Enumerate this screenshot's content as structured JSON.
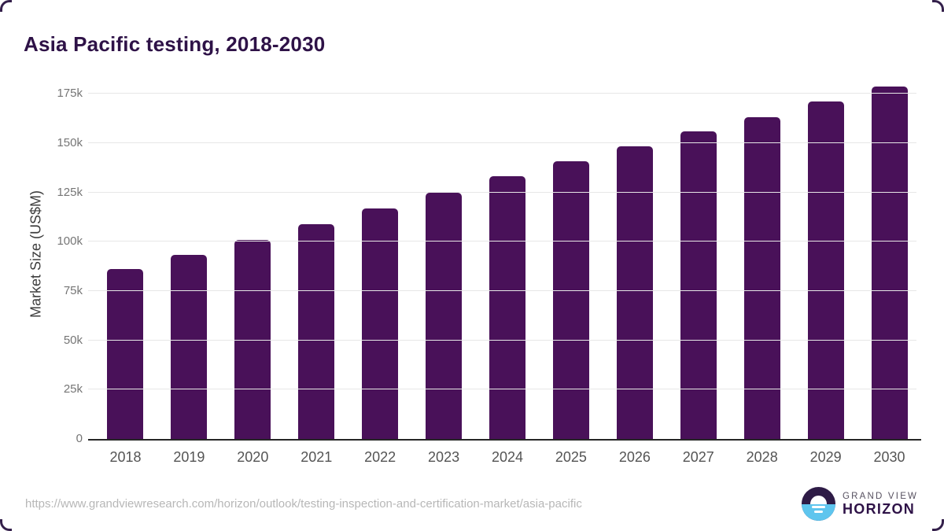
{
  "title": "Asia Pacific testing, 2018-2030",
  "chart_data": {
    "type": "bar",
    "title": "Asia Pacific testing, 2018-2030",
    "categories": [
      "2018",
      "2019",
      "2020",
      "2021",
      "2022",
      "2023",
      "2024",
      "2025",
      "2026",
      "2027",
      "2028",
      "2029",
      "2030"
    ],
    "values": [
      86000,
      93300,
      101000,
      108900,
      117000,
      124800,
      133300,
      140900,
      148400,
      156000,
      163300,
      171000,
      178700
    ],
    "xlabel": "",
    "ylabel": "Market Size (US$M)",
    "ylim": [
      0,
      187500
    ],
    "yticks": [
      {
        "v": 0,
        "label": "0"
      },
      {
        "v": 25000,
        "label": "25k"
      },
      {
        "v": 50000,
        "label": "50k"
      },
      {
        "v": 75000,
        "label": "75k"
      },
      {
        "v": 100000,
        "label": "100k"
      },
      {
        "v": 125000,
        "label": "125k"
      },
      {
        "v": 150000,
        "label": "150k"
      },
      {
        "v": 175000,
        "label": "175k"
      }
    ],
    "grid": "horizontal",
    "legend": "none",
    "bar_color": "#491159"
  },
  "footer": {
    "source_url": "https://www.grandviewresearch.com/horizon/outlook/testing-inspection-and-certification-market/asia-pacific",
    "brand_top": "GRAND VIEW",
    "brand_bottom": "HORIZON"
  },
  "colors": {
    "title": "#2e1247",
    "bar": "#491159",
    "logo_dark": "#2e1b46",
    "logo_blue": "#5ec5ee",
    "corner": "#34204b"
  }
}
